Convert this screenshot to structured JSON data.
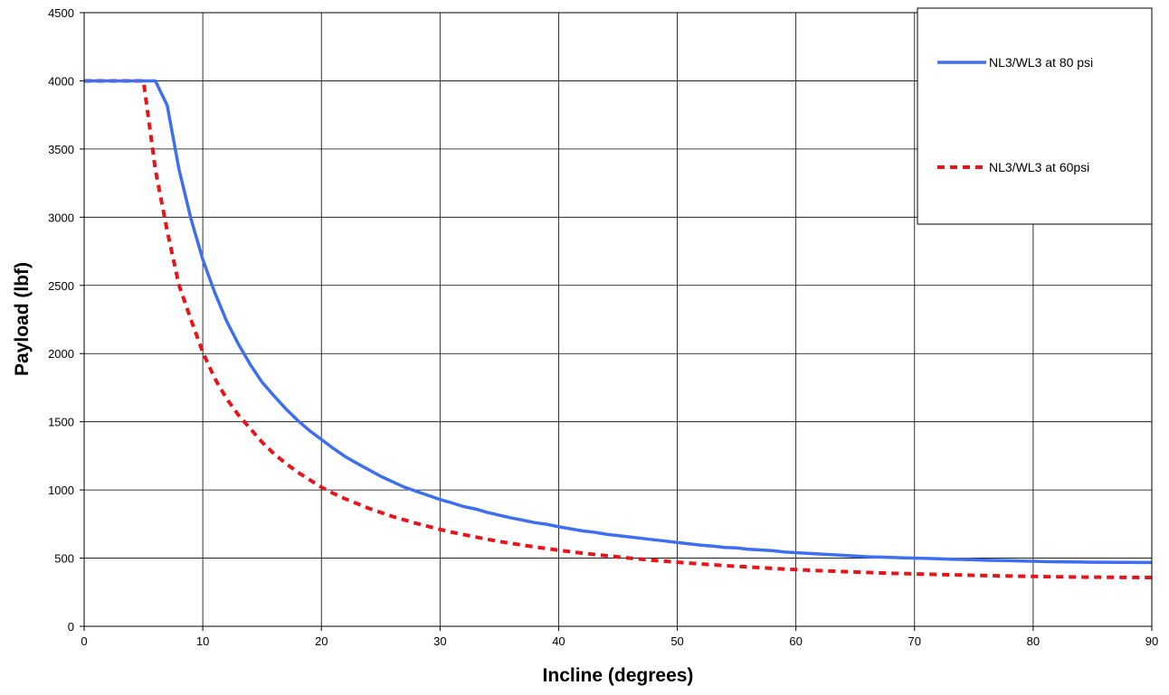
{
  "chart_data": {
    "type": "line",
    "title": "",
    "xlabel": "Incline (degrees)",
    "ylabel": "Payload (lbf)",
    "xlim": [
      0,
      90
    ],
    "ylim": [
      0,
      4500
    ],
    "xticks": [
      0,
      10,
      20,
      30,
      40,
      50,
      60,
      70,
      80,
      90
    ],
    "yticks": [
      0,
      500,
      1000,
      1500,
      2000,
      2500,
      3000,
      3500,
      4000,
      4500
    ],
    "grid": true,
    "legend_position": "top-right",
    "series": [
      {
        "name": "NL3/WL3 at 80 psi",
        "color": "#3d6ff0",
        "style": "solid",
        "x": [
          0,
          1,
          2,
          3,
          4,
          5,
          6,
          7,
          8,
          9,
          10,
          11,
          12,
          13,
          14,
          15,
          16,
          17,
          18,
          19,
          20,
          21,
          22,
          23,
          24,
          25,
          26,
          27,
          28,
          29,
          30,
          31,
          32,
          33,
          34,
          35,
          36,
          37,
          38,
          39,
          40,
          41,
          42,
          43,
          44,
          45,
          46,
          47,
          48,
          49,
          50,
          51,
          52,
          53,
          54,
          55,
          56,
          57,
          58,
          59,
          60,
          61,
          62,
          63,
          64,
          65,
          66,
          67,
          68,
          69,
          70,
          71,
          72,
          73,
          74,
          75,
          76,
          77,
          78,
          79,
          80,
          81,
          82,
          83,
          84,
          85,
          86,
          87,
          88,
          89,
          90
        ],
        "y": [
          4000,
          4000,
          4000,
          4000,
          4000,
          4000,
          4000,
          3820,
          3350,
          2990,
          2690,
          2450,
          2240,
          2070,
          1920,
          1790,
          1690,
          1595,
          1510,
          1435,
          1370,
          1305,
          1245,
          1195,
          1148,
          1100,
          1060,
          1020,
          990,
          960,
          930,
          905,
          878,
          860,
          835,
          815,
          795,
          778,
          760,
          748,
          730,
          715,
          700,
          690,
          675,
          665,
          655,
          645,
          635,
          625,
          615,
          605,
          595,
          588,
          578,
          575,
          565,
          560,
          555,
          545,
          540,
          535,
          530,
          525,
          520,
          515,
          510,
          508,
          505,
          502,
          500,
          498,
          495,
          492,
          490,
          488,
          485,
          483,
          481,
          479,
          477,
          475,
          473,
          472,
          471,
          470,
          470,
          469,
          469,
          468,
          468
        ]
      },
      {
        "name": "NL3/WL3 at 60psi",
        "color": "#e8141a",
        "style": "dashed",
        "x": [
          0,
          1,
          2,
          3,
          4,
          5,
          6,
          7,
          8,
          9,
          10,
          11,
          12,
          13,
          14,
          15,
          16,
          17,
          18,
          19,
          20,
          21,
          22,
          23,
          24,
          25,
          26,
          27,
          28,
          29,
          30,
          31,
          32,
          33,
          34,
          35,
          36,
          37,
          38,
          39,
          40,
          41,
          42,
          43,
          44,
          45,
          46,
          47,
          48,
          49,
          50,
          51,
          52,
          53,
          54,
          55,
          56,
          57,
          58,
          59,
          60,
          61,
          62,
          63,
          64,
          65,
          66,
          67,
          68,
          69,
          70,
          71,
          72,
          73,
          74,
          75,
          76,
          77,
          78,
          79,
          80,
          81,
          82,
          83,
          84,
          85,
          86,
          87,
          88,
          89,
          90
        ],
        "y": [
          4000,
          4000,
          4000,
          4000,
          4000,
          4000,
          3350,
          2900,
          2500,
          2250,
          2010,
          1820,
          1670,
          1550,
          1450,
          1350,
          1265,
          1195,
          1130,
          1075,
          1020,
          975,
          935,
          900,
          865,
          835,
          805,
          780,
          755,
          733,
          710,
          690,
          672,
          655,
          638,
          622,
          608,
          595,
          582,
          570,
          558,
          547,
          537,
          527,
          518,
          509,
          500,
          492,
          484,
          477,
          470,
          463,
          457,
          451,
          445,
          440,
          435,
          430,
          425,
          420,
          416,
          412,
          408,
          405,
          401,
          398,
          395,
          392,
          389,
          387,
          384,
          382,
          380,
          378,
          376,
          374,
          372,
          370,
          369,
          367,
          366,
          364,
          363,
          362,
          361,
          360,
          360,
          359,
          359,
          358,
          358
        ]
      }
    ]
  }
}
